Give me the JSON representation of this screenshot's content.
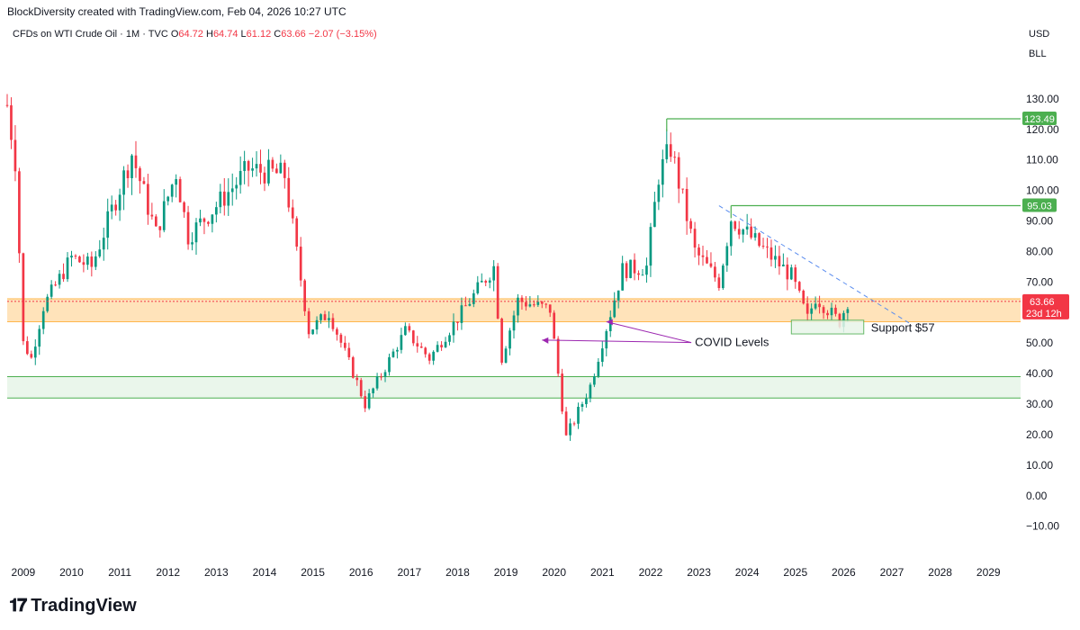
{
  "header": {
    "attribution": "BlockDiversity created with TradingView.com, Feb 04, 2026 10:27 UTC"
  },
  "symbol": {
    "name": "CFDs on WTI Crude Oil · 1M · TVC",
    "o_label": "O",
    "o_value": "64.72",
    "h_label": "H",
    "h_value": "64.74",
    "l_label": "L",
    "l_value": "61.12",
    "c_label": "C",
    "c_value": "63.66",
    "change": "−2.07 (−3.15%)"
  },
  "currency": "USD",
  "unit": "BLL",
  "brand": "TradingView",
  "colors": {
    "up": "#089981",
    "down": "#f23645",
    "zone_orange": "#ffe0b2",
    "zone_green": "#e8f5e9",
    "line_green": "#4caf50",
    "trend_blue": "#5b8def",
    "annot_purple": "#9c27b0"
  },
  "chart_data": {
    "type": "candlestick",
    "interval": "1M",
    "xlim": [
      "2008-09",
      "2029-09"
    ],
    "ylim": [
      -14,
      140
    ],
    "y_ticks": [
      "130.00",
      "120.00",
      "110.00",
      "100.00",
      "90.00",
      "80.00",
      "70.00",
      "60.00",
      "50.00",
      "40.00",
      "30.00",
      "20.00",
      "10.00",
      "0.00",
      "−10.00"
    ],
    "y_tick_values": [
      130,
      120,
      110,
      100,
      90,
      80,
      70,
      60,
      50,
      40,
      30,
      20,
      10,
      0,
      -10
    ],
    "x_ticks": [
      "2009",
      "2010",
      "2011",
      "2012",
      "2013",
      "2014",
      "2015",
      "2016",
      "2017",
      "2018",
      "2019",
      "2020",
      "2021",
      "2022",
      "2023",
      "2024",
      "2025",
      "2026",
      "2027",
      "2028",
      "2029"
    ],
    "x_tick_years": [
      2009,
      2010,
      2011,
      2012,
      2013,
      2014,
      2015,
      2016,
      2017,
      2018,
      2019,
      2020,
      2021,
      2022,
      2023,
      2024,
      2025,
      2026,
      2027,
      2028,
      2029
    ],
    "candles_yearly_path": [
      {
        "date": "2008-09",
        "value": 128
      },
      {
        "date": "2008-11",
        "value": 110
      },
      {
        "date": "2009-01",
        "value": 50
      },
      {
        "date": "2009-03",
        "value": 45
      },
      {
        "date": "2009-06",
        "value": 62
      },
      {
        "date": "2010-01",
        "value": 78
      },
      {
        "date": "2010-06",
        "value": 75
      },
      {
        "date": "2011-04",
        "value": 112
      },
      {
        "date": "2011-10",
        "value": 86
      },
      {
        "date": "2012-03",
        "value": 106
      },
      {
        "date": "2012-06",
        "value": 85
      },
      {
        "date": "2013-01",
        "value": 95
      },
      {
        "date": "2013-09",
        "value": 107
      },
      {
        "date": "2014-06",
        "value": 105
      },
      {
        "date": "2014-12",
        "value": 54
      },
      {
        "date": "2015-05",
        "value": 60
      },
      {
        "date": "2015-12",
        "value": 37
      },
      {
        "date": "2016-02",
        "value": 30
      },
      {
        "date": "2016-12",
        "value": 54
      },
      {
        "date": "2017-06",
        "value": 45
      },
      {
        "date": "2018-10",
        "value": 75
      },
      {
        "date": "2018-12",
        "value": 45
      },
      {
        "date": "2019-04",
        "value": 64
      },
      {
        "date": "2019-12",
        "value": 61
      },
      {
        "date": "2020-04",
        "value": 19
      },
      {
        "date": "2020-10",
        "value": 36
      },
      {
        "date": "2021-06",
        "value": 74
      },
      {
        "date": "2021-12",
        "value": 75
      },
      {
        "date": "2022-03",
        "value": 105
      },
      {
        "date": "2022-06",
        "value": 114
      },
      {
        "date": "2022-12",
        "value": 80
      },
      {
        "date": "2023-06",
        "value": 70
      },
      {
        "date": "2023-09",
        "value": 91
      },
      {
        "date": "2024-04",
        "value": 82
      },
      {
        "date": "2024-12",
        "value": 72
      },
      {
        "date": "2025-04",
        "value": 58
      },
      {
        "date": "2025-06",
        "value": 65
      },
      {
        "date": "2025-12",
        "value": 57
      },
      {
        "date": "2026-02",
        "value": 63.66
      }
    ],
    "levels": [
      {
        "value": 123.49,
        "label": "123.49",
        "color": "#4caf50",
        "start": "2022-05"
      },
      {
        "value": 95.03,
        "label": "95.03",
        "color": "#4caf50",
        "start": "2023-09"
      }
    ],
    "last_price": {
      "value": 63.66,
      "label": "63.66",
      "countdown": "23d 12h",
      "color": "#f23645"
    },
    "zones": [
      {
        "from": 57,
        "to": 64.5,
        "color": "#ffe0b2"
      },
      {
        "from": 32,
        "to": 39,
        "color": "#e8f5e9"
      }
    ],
    "support_box": {
      "from": 53,
      "to": 57.5,
      "start": "2024-12",
      "end": "2026-06",
      "label": "Support $57"
    },
    "trendline": {
      "start_date": "2023-06",
      "start_value": 95,
      "end_date": "2027-06",
      "end_value": 56
    },
    "annotation": {
      "label": "COVID Levels",
      "points": [
        {
          "date": "2021-02",
          "value": 57
        },
        {
          "date": "2019-10",
          "value": 51
        }
      ],
      "text_date": "2022-12",
      "text_value": 49
    }
  }
}
